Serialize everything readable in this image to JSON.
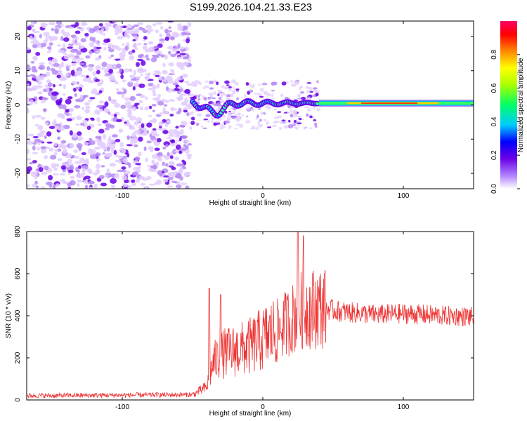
{
  "figure_title": "S199.2026.104.21.33.E23",
  "chart_data": [
    {
      "name": "spectrogram",
      "type": "heatmap",
      "xlabel": "Height of straight line (km)",
      "ylabel": "Frequency (Hz)",
      "xlim": [
        -168,
        150
      ],
      "ylim": [
        -24.5,
        24.5
      ],
      "xticks": [
        -100,
        0,
        100
      ],
      "xtick_labels": [
        "-100",
        "0",
        "100"
      ],
      "yticks": [
        -20,
        -10,
        0,
        10,
        20
      ],
      "ytick_labels": [
        "-20",
        "-10",
        "0",
        "10",
        "20"
      ],
      "noise_region_x": [
        -168,
        -52
      ],
      "signal_onset_x": -52,
      "stable_line_start_x": 40,
      "stable_line_freq": 0.5,
      "colorbar": {
        "label": "Normalized spectral amplitude",
        "range": [
          0,
          1
        ],
        "ticks": [
          0.0,
          0.2,
          0.4,
          0.6,
          0.8
        ],
        "tick_labels": [
          "0.0",
          "0.2",
          "0.4",
          "0.6",
          "0.8"
        ],
        "colormap": "rainbow",
        "colors": [
          "#ffffff",
          "#cc99ff",
          "#6a00e6",
          "#0000ff",
          "#00ccff",
          "#00ff66",
          "#ccff00",
          "#ffaa00",
          "#ff0000",
          "#ff0066"
        ]
      }
    },
    {
      "name": "snr",
      "type": "line",
      "xlabel": "Height of straight line (km)",
      "ylabel": "SNR (10 * v/v)",
      "xlim": [
        -168,
        150
      ],
      "ylim": [
        0,
        800
      ],
      "xticks": [
        -100,
        0,
        100
      ],
      "xtick_labels": [
        "-100",
        "0",
        "100"
      ],
      "yticks": [
        0,
        200,
        400,
        600,
        800
      ],
      "ytick_labels": [
        "0",
        "200",
        "400",
        "600",
        "800"
      ],
      "line_color": "#ee3333",
      "envelope_points": [
        {
          "x": -168,
          "y": 20
        },
        {
          "x": -50,
          "y": 25
        },
        {
          "x": -40,
          "y": 60
        },
        {
          "x": -35,
          "y": 180
        },
        {
          "x": -28,
          "y": 220
        },
        {
          "x": -10,
          "y": 250
        },
        {
          "x": 0,
          "y": 290
        },
        {
          "x": 10,
          "y": 330
        },
        {
          "x": 20,
          "y": 380
        },
        {
          "x": 28,
          "y": 430
        },
        {
          "x": 40,
          "y": 440
        },
        {
          "x": 55,
          "y": 420
        },
        {
          "x": 80,
          "y": 405
        },
        {
          "x": 100,
          "y": 410
        },
        {
          "x": 130,
          "y": 400
        },
        {
          "x": 150,
          "y": 395
        }
      ],
      "peaks": [
        {
          "x": -38,
          "y": 530
        },
        {
          "x": -30,
          "y": 500
        },
        {
          "x": 25,
          "y": 800
        },
        {
          "x": 29,
          "y": 780
        },
        {
          "x": 44,
          "y": 600
        }
      ]
    }
  ]
}
